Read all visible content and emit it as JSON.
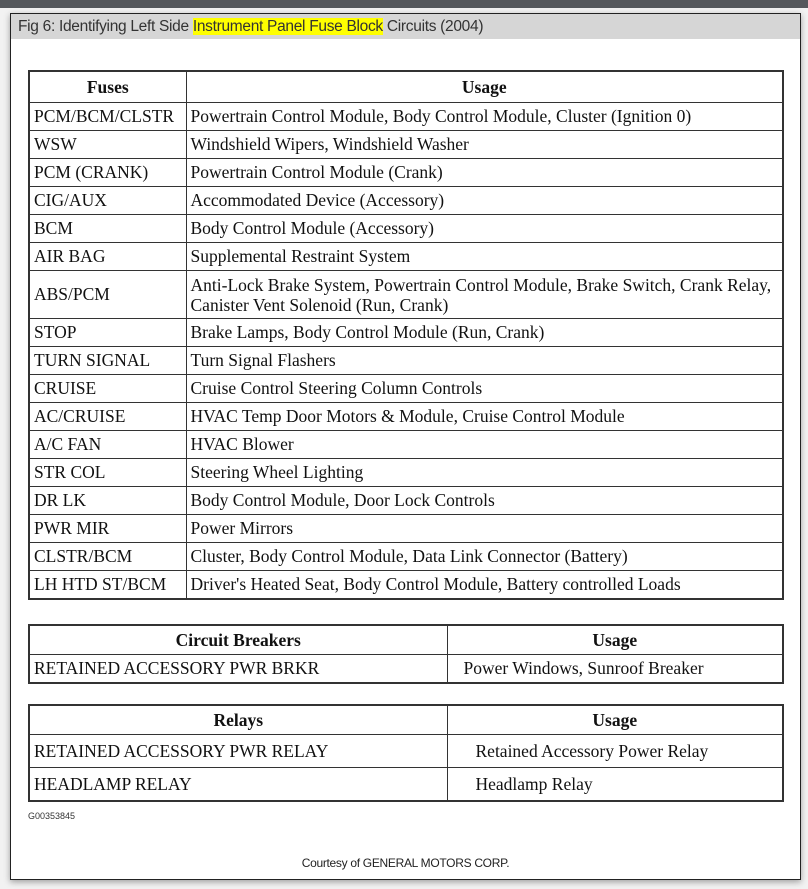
{
  "title": {
    "prefix": "Fig 6: Identifying Left Side ",
    "highlight": "Instrument Panel Fuse Block",
    "suffix": " Circuits (2004)",
    "highlight_color": "#ffff00"
  },
  "fuses": {
    "headers": [
      "Fuses",
      "Usage"
    ],
    "rows": [
      [
        "PCM/BCM/CLSTR",
        "Powertrain Control Module, Body Control Module, Cluster (Ignition  0)"
      ],
      [
        "WSW",
        "Windshield Wipers, Windshield Washer"
      ],
      [
        "PCM (CRANK)",
        "Powertrain Control Module (Crank)"
      ],
      [
        "CIG/AUX",
        "Accommodated Device (Accessory)"
      ],
      [
        "BCM",
        "Body Control Module (Accessory)"
      ],
      [
        "AIR BAG",
        "Supplemental Restraint System"
      ],
      [
        "ABS/PCM",
        "Anti-Lock Brake System, Powertrain Control Module, Brake Switch, Crank Relay, Canister Vent Solenoid (Run, Crank)"
      ],
      [
        "STOP",
        "Brake Lamps, Body Control Module (Run, Crank)"
      ],
      [
        "TURN SIGNAL",
        "Turn Signal Flashers"
      ],
      [
        "CRUISE",
        "Cruise Control Steering Column Controls"
      ],
      [
        "AC/CRUISE",
        "HVAC Temp Door Motors & Module, Cruise Control Module"
      ],
      [
        "A/C FAN",
        "HVAC Blower"
      ],
      [
        "STR COL",
        "Steering Wheel Lighting"
      ],
      [
        "DR LK",
        "Body Control Module, Door Lock Controls"
      ],
      [
        "PWR MIR",
        "Power Mirrors"
      ],
      [
        "CLSTR/BCM",
        "Cluster, Body Control Module, Data Link Connector (Battery)"
      ],
      [
        "LH HTD ST/BCM",
        "Driver's Heated Seat, Body Control Module, Battery controlled Loads"
      ]
    ]
  },
  "circuit_breakers": {
    "headers": [
      "Circuit Breakers",
      "Usage"
    ],
    "rows": [
      [
        "RETAINED ACCESSORY PWR BRKR",
        "Power Windows, Sunroof Breaker"
      ]
    ]
  },
  "relays": {
    "headers": [
      "Relays",
      "Usage"
    ],
    "rows": [
      [
        "RETAINED ACCESSORY PWR RELAY",
        "Retained Accessory Power Relay"
      ],
      [
        "HEADLAMP RELAY",
        "Headlamp Relay"
      ]
    ]
  },
  "figure_id": "G00353845",
  "courtesy": "Courtesy of GENERAL MOTORS CORP."
}
